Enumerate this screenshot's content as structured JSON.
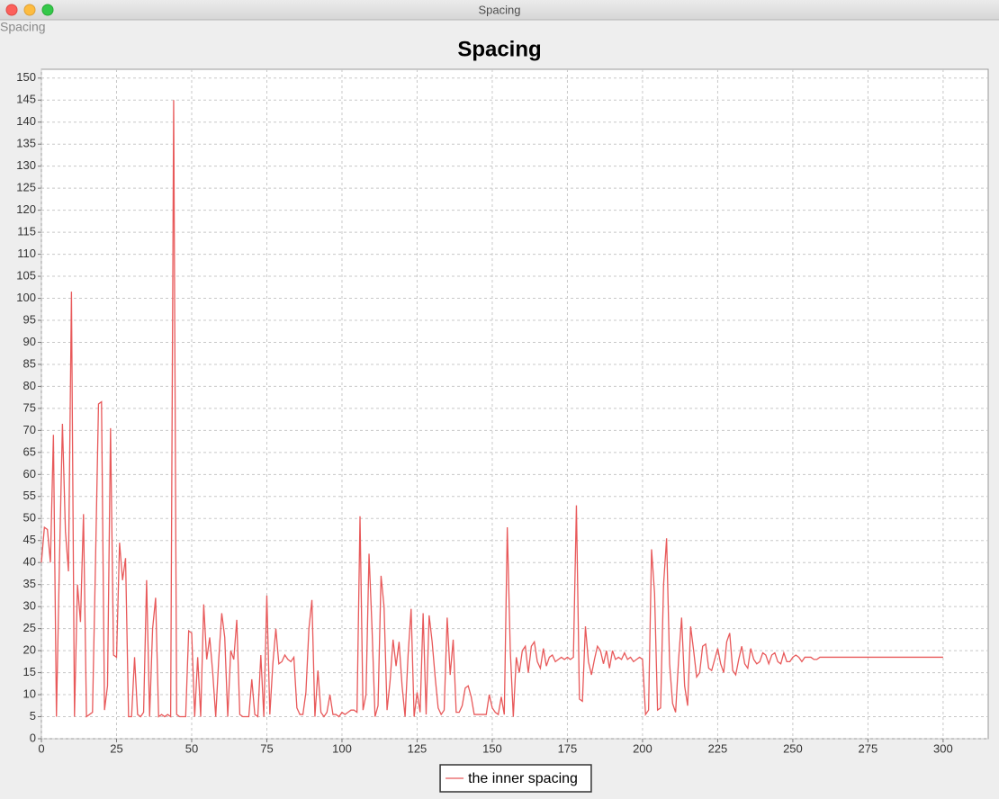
{
  "window_title": "Spacing",
  "panel_label": "Spacing",
  "chart_data": {
    "type": "line",
    "title": "Spacing",
    "x": [
      0,
      1,
      2,
      3,
      4,
      5,
      6,
      7,
      8,
      9,
      10,
      11,
      12,
      13,
      14,
      15,
      16,
      17,
      18,
      19,
      20,
      21,
      22,
      23,
      24,
      25,
      26,
      27,
      28,
      29,
      30,
      31,
      32,
      33,
      34,
      35,
      36,
      37,
      38,
      39,
      40,
      41,
      42,
      43,
      44,
      45,
      46,
      47,
      48,
      49,
      50,
      51,
      52,
      53,
      54,
      55,
      56,
      57,
      58,
      59,
      60,
      61,
      62,
      63,
      64,
      65,
      66,
      67,
      68,
      69,
      70,
      71,
      72,
      73,
      74,
      75,
      76,
      77,
      78,
      79,
      80,
      81,
      82,
      83,
      84,
      85,
      86,
      87,
      88,
      89,
      90,
      91,
      92,
      93,
      94,
      95,
      96,
      97,
      98,
      99,
      100,
      101,
      102,
      103,
      104,
      105,
      106,
      107,
      108,
      109,
      110,
      111,
      112,
      113,
      114,
      115,
      116,
      117,
      118,
      119,
      120,
      121,
      122,
      123,
      124,
      125,
      126,
      127,
      128,
      129,
      130,
      131,
      132,
      133,
      134,
      135,
      136,
      137,
      138,
      139,
      140,
      141,
      142,
      143,
      144,
      145,
      146,
      147,
      148,
      149,
      150,
      151,
      152,
      153,
      154,
      155,
      156,
      157,
      158,
      159,
      160,
      161,
      162,
      163,
      164,
      165,
      166,
      167,
      168,
      169,
      170,
      171,
      172,
      173,
      174,
      175,
      176,
      177,
      178,
      179,
      180,
      181,
      182,
      183,
      184,
      185,
      186,
      187,
      188,
      189,
      190,
      191,
      192,
      193,
      194,
      195,
      196,
      197,
      198,
      199,
      200,
      201,
      202,
      203,
      204,
      205,
      206,
      207,
      208,
      209,
      210,
      211,
      212,
      213,
      214,
      215,
      216,
      217,
      218,
      219,
      220,
      221,
      222,
      223,
      224,
      225,
      226,
      227,
      228,
      229,
      230,
      231,
      232,
      233,
      234,
      235,
      236,
      237,
      238,
      239,
      240,
      241,
      242,
      243,
      244,
      245,
      246,
      247,
      248,
      249,
      250,
      251,
      252,
      253,
      254,
      255,
      256,
      257,
      258,
      259,
      260,
      261,
      262,
      263,
      264,
      265,
      266,
      267,
      268,
      269,
      270,
      271,
      272,
      273,
      274,
      275,
      276,
      277,
      278,
      279,
      280,
      281,
      282,
      283,
      284,
      285,
      286,
      287,
      288,
      289,
      290,
      291,
      292,
      293,
      294,
      295,
      296,
      297,
      298,
      299,
      300
    ],
    "series": [
      {
        "name": "the inner spacing",
        "color": "#e8595a",
        "values": [
          40,
          48,
          47.5,
          40,
          69,
          5,
          40,
          71.5,
          47,
          38,
          101.5,
          5,
          35,
          26.5,
          51,
          5,
          5.5,
          6,
          40,
          76,
          76.5,
          6.5,
          12,
          70.5,
          19,
          18.5,
          44.5,
          36,
          41,
          5,
          5,
          18.5,
          5.5,
          5,
          6,
          36,
          5,
          25,
          32,
          5,
          5.5,
          5,
          5.5,
          5,
          145,
          5.5,
          5,
          5,
          5,
          24.5,
          24,
          5,
          18.5,
          5,
          30.5,
          18,
          23,
          15,
          5,
          18,
          28.5,
          23,
          5,
          20,
          18,
          27,
          5.5,
          5,
          5,
          5,
          13.5,
          5.5,
          5,
          19,
          5,
          32.5,
          5.5,
          17,
          25,
          17,
          17.5,
          19,
          18,
          17.5,
          18.5,
          7,
          5.5,
          5.5,
          10.5,
          25,
          31.5,
          5,
          15.5,
          6,
          5,
          6,
          10,
          5.5,
          5.5,
          5,
          6,
          5.5,
          6,
          6.5,
          6.5,
          6,
          50.5,
          6.5,
          10,
          42,
          25,
          5,
          7.5,
          37,
          30,
          6.5,
          13,
          22.5,
          16.5,
          22,
          12,
          5,
          19,
          29.5,
          5,
          10.5,
          6,
          28.5,
          5.5,
          28,
          22,
          14,
          7,
          5.5,
          6.5,
          27.5,
          14.5,
          22.5,
          6,
          6,
          7.5,
          11.5,
          12,
          9.5,
          5.5,
          5.5,
          5.5,
          5.5,
          5.5,
          10,
          7,
          6,
          5.5,
          9.5,
          5.5,
          48,
          20,
          5,
          18.5,
          15,
          20,
          21,
          15,
          21,
          22,
          17.5,
          16,
          20.5,
          16.5,
          18.5,
          19,
          17.5,
          18,
          18.5,
          18,
          18.5,
          18,
          18.5,
          53,
          9,
          8.5,
          25.5,
          17.5,
          14.5,
          18,
          21,
          20,
          17,
          20,
          16,
          20,
          18,
          18.5,
          18,
          19.5,
          18,
          18.5,
          17.5,
          18,
          18.5,
          18,
          5.5,
          6.5,
          43,
          33,
          6.5,
          7,
          35,
          45.5,
          17,
          8,
          6,
          18,
          27.5,
          12,
          7.5,
          25.5,
          20,
          14,
          15,
          21,
          21.5,
          16,
          15.5,
          18,
          20.5,
          17,
          15,
          22,
          24,
          15.5,
          14.5,
          18,
          21,
          17,
          16,
          20.5,
          18,
          17,
          17.5,
          19.5,
          19,
          17,
          19,
          19.5,
          17.5,
          17,
          19.5,
          17.5,
          17.5,
          18.5,
          19,
          18.5,
          17.5,
          18.5,
          18.5,
          18.5,
          18,
          18,
          18.5,
          18.5,
          18.5,
          18.5,
          18.5,
          18.5,
          18.5,
          18.5,
          18.5,
          18.5,
          18.5,
          18.5,
          18.5,
          18.5,
          18.5,
          18.5,
          18.5,
          18.5,
          18.5,
          18.5,
          18.5,
          18.5,
          18.5,
          18.5,
          18.5,
          18.5,
          18.5,
          18.5,
          18.5,
          18.5,
          18.5,
          18.5,
          18.5,
          18.5,
          18.5,
          18.5,
          18.5,
          18.5,
          18.5,
          18.5,
          18.5,
          18.5
        ]
      }
    ],
    "xlim": [
      0,
      315
    ],
    "ylim": [
      0,
      152
    ],
    "xticks": [
      0,
      25,
      50,
      75,
      100,
      125,
      150,
      175,
      200,
      225,
      250,
      275,
      300
    ],
    "yticks": [
      0,
      5,
      10,
      15,
      20,
      25,
      30,
      35,
      40,
      45,
      50,
      55,
      60,
      65,
      70,
      75,
      80,
      85,
      90,
      95,
      100,
      105,
      110,
      115,
      120,
      125,
      130,
      135,
      140,
      145,
      150
    ],
    "grid": true,
    "legend": "bottom"
  }
}
